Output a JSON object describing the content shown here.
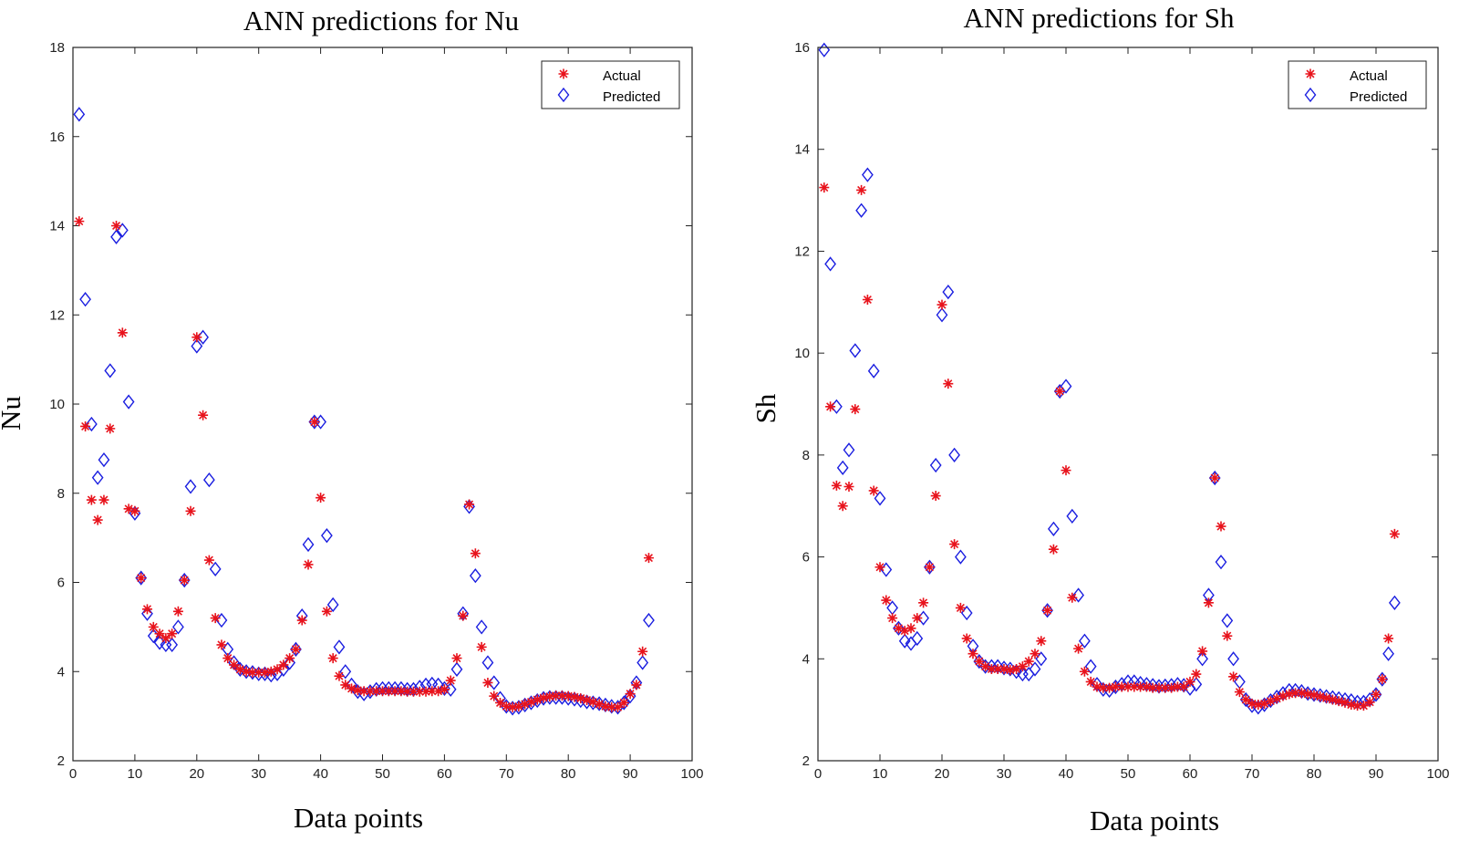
{
  "chart_data": [
    {
      "type": "scatter",
      "title": "ANN predictions for Nu",
      "xlabel": "Data points",
      "ylabel": "Nu",
      "xlim": [
        0,
        100
      ],
      "ylim": [
        2,
        18
      ],
      "xticks": [
        "0",
        "10",
        "20",
        "30",
        "40",
        "50",
        "60",
        "70",
        "80",
        "90",
        "100"
      ],
      "yticks": [
        "2",
        "4",
        "6",
        "8",
        "10",
        "12",
        "14",
        "16",
        "18"
      ],
      "legend": {
        "position": "top-right",
        "entries": [
          "Actual",
          "Predicted"
        ]
      },
      "x": [
        1,
        2,
        3,
        4,
        5,
        6,
        7,
        8,
        9,
        10,
        11,
        12,
        13,
        14,
        15,
        16,
        17,
        18,
        19,
        20,
        21,
        22,
        23,
        24,
        25,
        26,
        27,
        28,
        29,
        30,
        31,
        32,
        33,
        34,
        35,
        36,
        37,
        38,
        39,
        40,
        41,
        42,
        43,
        44,
        45,
        46,
        47,
        48,
        49,
        50,
        51,
        52,
        53,
        54,
        55,
        56,
        57,
        58,
        59,
        60,
        61,
        62,
        63,
        64,
        65,
        66,
        67,
        68,
        69,
        70,
        71,
        72,
        73,
        74,
        75,
        76,
        77,
        78,
        79,
        80,
        81,
        82,
        83,
        84,
        85,
        86,
        87,
        88,
        89,
        90,
        91,
        92,
        93
      ],
      "series": [
        {
          "name": "Actual",
          "marker": "star",
          "color": "#e8131c",
          "values": [
            14.1,
            9.5,
            7.85,
            7.4,
            7.85,
            9.45,
            14.0,
            11.6,
            7.65,
            7.6,
            6.1,
            5.4,
            5.0,
            4.85,
            4.75,
            4.85,
            5.35,
            6.05,
            7.6,
            11.5,
            9.75,
            6.5,
            5.2,
            4.6,
            4.3,
            4.15,
            4.05,
            4.0,
            3.98,
            3.98,
            3.98,
            4.0,
            4.05,
            4.15,
            4.3,
            4.5,
            5.15,
            6.4,
            9.6,
            7.9,
            5.35,
            4.3,
            3.9,
            3.7,
            3.62,
            3.58,
            3.56,
            3.56,
            3.56,
            3.56,
            3.56,
            3.56,
            3.56,
            3.55,
            3.55,
            3.55,
            3.55,
            3.56,
            3.56,
            3.6,
            3.8,
            4.3,
            5.25,
            7.75,
            6.65,
            4.55,
            3.75,
            3.45,
            3.3,
            3.22,
            3.2,
            3.22,
            3.27,
            3.32,
            3.37,
            3.41,
            3.44,
            3.46,
            3.46,
            3.45,
            3.43,
            3.4,
            3.36,
            3.32,
            3.27,
            3.22,
            3.2,
            3.2,
            3.3,
            3.5,
            3.7,
            4.45,
            6.55
          ]
        },
        {
          "name": "Predicted",
          "marker": "diamond",
          "color": "#1a1ee0",
          "values": [
            16.5,
            12.35,
            9.55,
            8.35,
            8.75,
            10.75,
            13.75,
            13.9,
            10.05,
            7.55,
            6.1,
            5.3,
            4.8,
            4.65,
            4.6,
            4.6,
            5.0,
            6.05,
            8.15,
            11.3,
            11.5,
            8.3,
            6.3,
            5.15,
            4.5,
            4.2,
            4.05,
            4.0,
            3.98,
            3.95,
            3.95,
            3.92,
            3.95,
            4.05,
            4.2,
            4.5,
            5.25,
            6.85,
            9.6,
            9.6,
            7.05,
            5.5,
            4.55,
            4.0,
            3.7,
            3.55,
            3.5,
            3.55,
            3.6,
            3.62,
            3.62,
            3.62,
            3.62,
            3.6,
            3.6,
            3.65,
            3.7,
            3.72,
            3.7,
            3.62,
            3.6,
            4.05,
            5.3,
            7.7,
            6.15,
            5.0,
            4.2,
            3.75,
            3.4,
            3.22,
            3.18,
            3.2,
            3.25,
            3.3,
            3.35,
            3.4,
            3.42,
            3.42,
            3.42,
            3.4,
            3.38,
            3.35,
            3.32,
            3.3,
            3.28,
            3.25,
            3.22,
            3.2,
            3.3,
            3.45,
            3.75,
            4.2,
            5.15
          ]
        }
      ]
    },
    {
      "type": "scatter",
      "title": "ANN predictions for Sh",
      "xlabel": "Data points",
      "ylabel": "Sh",
      "xlim": [
        0,
        100
      ],
      "ylim": [
        2,
        16
      ],
      "xticks": [
        "0",
        "10",
        "20",
        "30",
        "40",
        "50",
        "60",
        "70",
        "80",
        "90",
        "100"
      ],
      "yticks": [
        "2",
        "4",
        "6",
        "8",
        "10",
        "12",
        "14",
        "16"
      ],
      "legend": {
        "position": "top-right",
        "entries": [
          "Actual",
          "Predicted"
        ]
      },
      "x": [
        1,
        2,
        3,
        4,
        5,
        6,
        7,
        8,
        9,
        10,
        11,
        12,
        13,
        14,
        15,
        16,
        17,
        18,
        19,
        20,
        21,
        22,
        23,
        24,
        25,
        26,
        27,
        28,
        29,
        30,
        31,
        32,
        33,
        34,
        35,
        36,
        37,
        38,
        39,
        40,
        41,
        42,
        43,
        44,
        45,
        46,
        47,
        48,
        49,
        50,
        51,
        52,
        53,
        54,
        55,
        56,
        57,
        58,
        59,
        60,
        61,
        62,
        63,
        64,
        65,
        66,
        67,
        68,
        69,
        70,
        71,
        72,
        73,
        74,
        75,
        76,
        77,
        78,
        79,
        80,
        81,
        82,
        83,
        84,
        85,
        86,
        87,
        88,
        89,
        90,
        91,
        92,
        93
      ],
      "series": [
        {
          "name": "Actual",
          "marker": "star",
          "color": "#e8131c",
          "values": [
            13.25,
            8.95,
            7.4,
            7.0,
            7.38,
            8.9,
            13.2,
            11.05,
            7.3,
            5.8,
            5.15,
            4.8,
            4.6,
            4.55,
            4.6,
            4.8,
            5.1,
            5.8,
            7.2,
            10.95,
            9.4,
            6.25,
            5.0,
            4.4,
            4.1,
            3.95,
            3.85,
            3.8,
            3.8,
            3.8,
            3.78,
            3.8,
            3.85,
            3.95,
            4.1,
            4.35,
            4.95,
            6.15,
            9.25,
            7.7,
            5.2,
            4.2,
            3.75,
            3.55,
            3.45,
            3.43,
            3.43,
            3.45,
            3.45,
            3.45,
            3.45,
            3.45,
            3.45,
            3.43,
            3.43,
            3.43,
            3.43,
            3.45,
            3.45,
            3.55,
            3.7,
            4.15,
            5.1,
            7.55,
            6.6,
            4.45,
            3.65,
            3.35,
            3.2,
            3.12,
            3.1,
            3.12,
            3.17,
            3.22,
            3.27,
            3.31,
            3.33,
            3.33,
            3.31,
            3.29,
            3.26,
            3.23,
            3.2,
            3.17,
            3.14,
            3.1,
            3.08,
            3.08,
            3.15,
            3.3,
            3.6,
            4.4,
            6.45
          ]
        },
        {
          "name": "Predicted",
          "marker": "diamond",
          "color": "#1a1ee0",
          "values": [
            15.95,
            11.75,
            8.95,
            7.75,
            8.1,
            10.05,
            12.8,
            13.5,
            9.65,
            7.15,
            5.75,
            5.0,
            4.6,
            4.35,
            4.3,
            4.4,
            4.8,
            5.8,
            7.8,
            10.75,
            11.2,
            8.0,
            6.0,
            4.9,
            4.25,
            3.95,
            3.85,
            3.85,
            3.85,
            3.82,
            3.8,
            3.75,
            3.7,
            3.7,
            3.8,
            4.0,
            4.95,
            6.55,
            9.25,
            9.35,
            6.8,
            5.25,
            4.35,
            3.85,
            3.5,
            3.4,
            3.38,
            3.45,
            3.5,
            3.55,
            3.55,
            3.52,
            3.5,
            3.48,
            3.46,
            3.47,
            3.48,
            3.5,
            3.48,
            3.42,
            3.5,
            4.0,
            5.25,
            7.55,
            5.9,
            4.75,
            4.0,
            3.55,
            3.2,
            3.08,
            3.05,
            3.1,
            3.18,
            3.25,
            3.32,
            3.38,
            3.38,
            3.36,
            3.32,
            3.3,
            3.28,
            3.26,
            3.24,
            3.22,
            3.2,
            3.18,
            3.15,
            3.15,
            3.2,
            3.3,
            3.6,
            4.1,
            5.1
          ]
        }
      ]
    }
  ]
}
